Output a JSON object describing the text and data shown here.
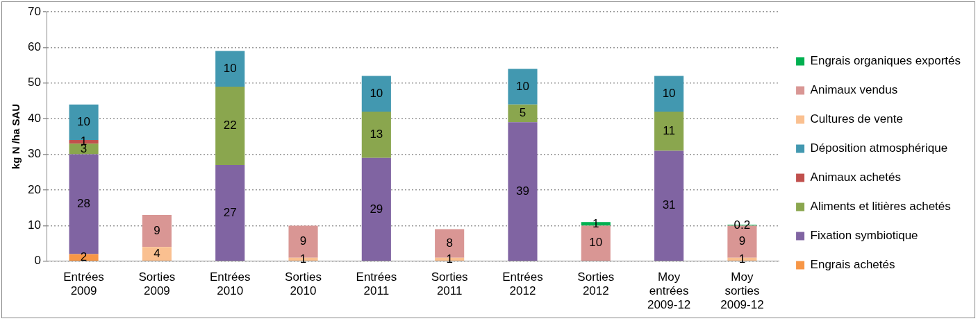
{
  "chart_data": {
    "type": "bar",
    "stacked": true,
    "ylabel": "kg N /ha SAU",
    "categories": [
      "Entrées 2009",
      "Sorties 2009",
      "Entrées 2010",
      "Sorties 2010",
      "Entrées 2011",
      "Sorties 2011",
      "Entrées 2012",
      "Sorties 2012",
      "Moy entrées 2009-12",
      "Moy sorties 2009-12"
    ],
    "series": [
      {
        "name": "Engrais achetés",
        "color": "#f79646",
        "values": [
          2,
          null,
          null,
          null,
          null,
          null,
          null,
          null,
          null,
          null
        ]
      },
      {
        "name": "Fixation symbiotique",
        "color": "#8064a2",
        "values": [
          28,
          null,
          27,
          null,
          29,
          null,
          39,
          null,
          31,
          null
        ]
      },
      {
        "name": "Aliments et litières achetés",
        "color": "#8aa64e",
        "values": [
          3,
          null,
          22,
          null,
          13,
          null,
          5,
          null,
          11,
          null
        ]
      },
      {
        "name": "Animaux achetés",
        "color": "#c0504d",
        "values": [
          1,
          null,
          null,
          null,
          null,
          null,
          null,
          null,
          null,
          null
        ]
      },
      {
        "name": "Déposition atmosphérique",
        "color": "#4298b0",
        "values": [
          10,
          null,
          10,
          null,
          10,
          null,
          10,
          null,
          10,
          null
        ]
      },
      {
        "name": "Cultures de vente",
        "color": "#fac090",
        "values": [
          null,
          4,
          null,
          1,
          null,
          1,
          null,
          null,
          null,
          1
        ]
      },
      {
        "name": "Animaux vendus",
        "color": "#d99694",
        "values": [
          null,
          9,
          null,
          9,
          null,
          8,
          null,
          10,
          null,
          9
        ]
      },
      {
        "name": "Engrais organiques exportés",
        "color": "#00b050",
        "values": [
          null,
          null,
          null,
          null,
          null,
          null,
          null,
          1,
          null,
          0.2
        ]
      }
    ],
    "ylim": [
      0,
      70
    ],
    "yticks": [
      0,
      10,
      20,
      30,
      40,
      50,
      60,
      70
    ],
    "grid": "y",
    "legend": "right",
    "data_labels": true
  }
}
